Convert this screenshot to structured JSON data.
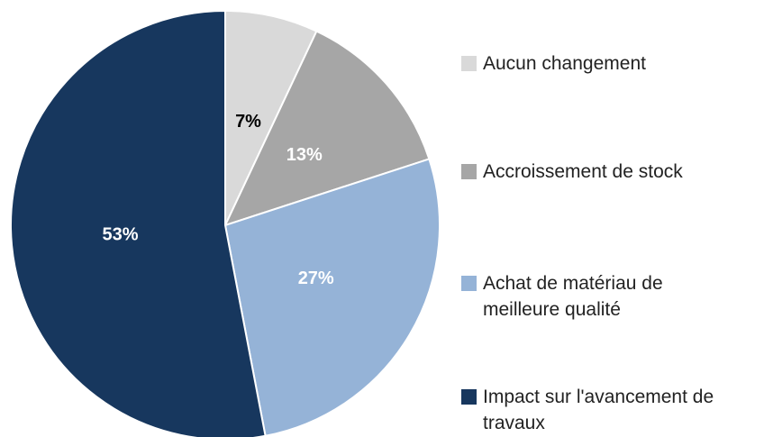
{
  "chart_data": {
    "type": "pie",
    "categories": [
      "Aucun changement",
      "Accroissement de stock",
      "Achat de matériau de meilleure qualité",
      "Impact sur l'avancement de travaux"
    ],
    "values": [
      7,
      13,
      27,
      53
    ],
    "value_labels": [
      "7%",
      "13%",
      "27%",
      "53%"
    ],
    "colors": [
      "#d9d9d9",
      "#a6a6a6",
      "#95b3d7",
      "#17375e"
    ],
    "label_colors": [
      "#000000",
      "#ffffff",
      "#ffffff",
      "#ffffff"
    ],
    "legend": "right"
  }
}
